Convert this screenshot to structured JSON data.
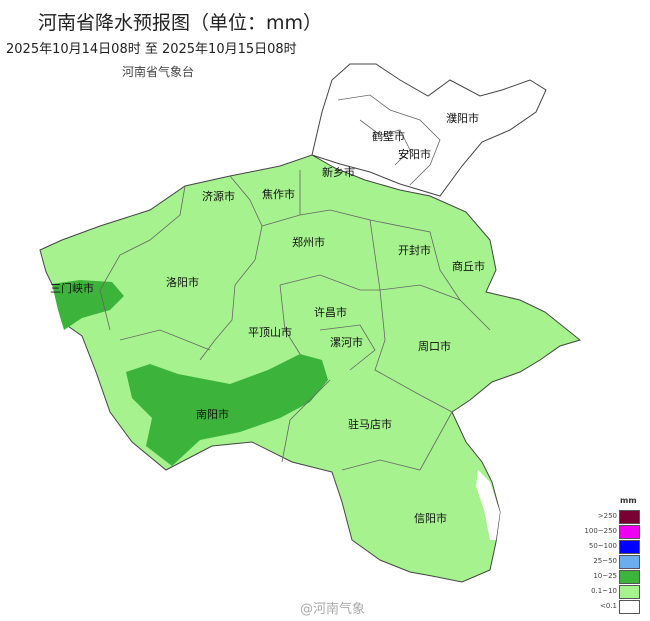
{
  "title": "河南省降水预报图（单位：mm）",
  "period": "2025年10月14日08时  至  2025年10月15日08时",
  "agency": "河南省气象台",
  "cities": [
    "濮阳市",
    "鹤壁市",
    "安阳市",
    "新乡市",
    "济源市",
    "焦作市",
    "郑州市",
    "开封市",
    "商丘市",
    "三门峡市",
    "洛阳市",
    "许昌市",
    "平顶山市",
    "漯河市",
    "周口市",
    "南阳市",
    "驻马店市",
    "信阳市"
  ],
  "legend": {
    "unit": "mm",
    "items": [
      {
        "label": ">250",
        "color": "#7a0034"
      },
      {
        "label": "100~250",
        "color": "#f000f0"
      },
      {
        "label": "50~100",
        "color": "#0000ff"
      },
      {
        "label": "25~50",
        "color": "#6aaef0"
      },
      {
        "label": "10~25",
        "color": "#3cb43c"
      },
      {
        "label": "0.1~10",
        "color": "#a6f28e"
      },
      {
        "label": "<0.1",
        "color": "#ffffff"
      }
    ]
  },
  "watermark": "@河南气象"
}
